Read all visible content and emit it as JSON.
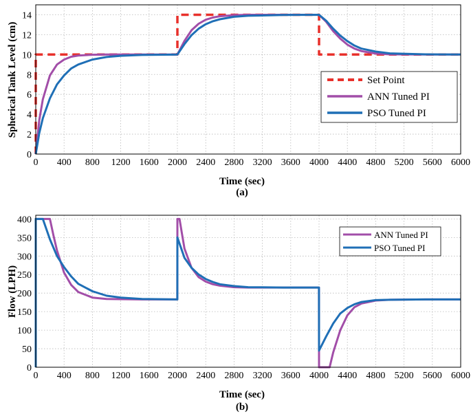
{
  "chart_data": [
    {
      "type": "line",
      "xlabel": "Time (sec)",
      "ylabel": "Spherical Tank Level (cm)",
      "caption": "(a)",
      "xlim": [
        0,
        6000
      ],
      "ylim": [
        0,
        15
      ],
      "xticks": [
        0,
        400,
        800,
        1200,
        1600,
        2000,
        2400,
        2800,
        3200,
        3600,
        4000,
        4400,
        4800,
        5200,
        5600,
        6000
      ],
      "yticks": [
        0,
        2,
        4,
        6,
        8,
        10,
        12,
        14
      ],
      "grid": true,
      "legend_position": "right",
      "series": [
        {
          "name": "Set Point",
          "color": "#e8302b",
          "style": "dashed",
          "x": [
            0,
            0,
            2000,
            2000,
            4000,
            4000,
            6000
          ],
          "y": [
            0,
            10,
            10,
            14,
            14,
            10,
            10
          ]
        },
        {
          "name": "ANN Tuned PI",
          "color": "#a24ea8",
          "style": "solid",
          "x": [
            0,
            50,
            100,
            200,
            300,
            400,
            500,
            600,
            800,
            1000,
            1500,
            2000,
            2100,
            2200,
            2300,
            2400,
            2500,
            2600,
            2800,
            3000,
            3500,
            4000,
            4100,
            4200,
            4300,
            4400,
            4500,
            4600,
            4800,
            5000,
            5500,
            6000
          ],
          "y": [
            0,
            3.4,
            5.5,
            7.9,
            9.0,
            9.5,
            9.78,
            9.9,
            9.98,
            10,
            10,
            10,
            11.38,
            12.45,
            13.1,
            13.5,
            13.72,
            13.85,
            13.96,
            14,
            14,
            14,
            13.3,
            12.35,
            11.6,
            11.0,
            10.6,
            10.35,
            10.1,
            10.02,
            10,
            10
          ]
        },
        {
          "name": "PSO Tuned PI",
          "color": "#1f6fb6",
          "style": "solid",
          "x": [
            0,
            50,
            100,
            200,
            300,
            400,
            500,
            600,
            800,
            1000,
            1200,
            1500,
            2000,
            2100,
            2200,
            2300,
            2400,
            2500,
            2600,
            2800,
            3000,
            3500,
            4000,
            4100,
            4200,
            4300,
            4400,
            4500,
            4600,
            4800,
            5000,
            5500,
            6000
          ],
          "y": [
            0,
            2.1,
            3.6,
            5.6,
            7.0,
            7.9,
            8.6,
            9.0,
            9.5,
            9.75,
            9.88,
            9.96,
            10,
            11.05,
            11.95,
            12.6,
            13.05,
            13.35,
            13.55,
            13.8,
            13.9,
            13.98,
            14,
            13.4,
            12.6,
            11.9,
            11.35,
            10.9,
            10.6,
            10.3,
            10.12,
            10.02,
            10
          ]
        }
      ]
    },
    {
      "type": "line",
      "xlabel": "Time (sec)",
      "ylabel": "Flow (LPH)",
      "caption": "(b)",
      "xlim": [
        0,
        6000
      ],
      "ylim": [
        0,
        410
      ],
      "xticks": [
        0,
        400,
        800,
        1200,
        1600,
        2000,
        2400,
        2800,
        3200,
        3600,
        4000,
        4400,
        4800,
        5200,
        5600,
        6000
      ],
      "yticks": [
        0,
        50,
        100,
        150,
        200,
        250,
        300,
        350,
        400
      ],
      "grid": true,
      "legend_position": "top-right",
      "series": [
        {
          "name": "ANN Tuned PI",
          "color": "#a24ea8",
          "style": "solid",
          "x": [
            0,
            0,
            200,
            250,
            300,
            400,
            500,
            600,
            800,
            1000,
            1500,
            1999,
            2000,
            2030,
            2060,
            2100,
            2200,
            2300,
            2400,
            2500,
            2600,
            2800,
            3000,
            3500,
            3999,
            4000,
            4150,
            4200,
            4300,
            4400,
            4500,
            4600,
            4800,
            5000,
            5500,
            6000
          ],
          "y": [
            0,
            400,
            400,
            355,
            315,
            255,
            222,
            203,
            188,
            184,
            183,
            183,
            400,
            400,
            365,
            320,
            268,
            243,
            231,
            224,
            220,
            216,
            215,
            215,
            215,
            0,
            0,
            40,
            100,
            140,
            162,
            172,
            180,
            182,
            183,
            183
          ]
        },
        {
          "name": "PSO Tuned PI",
          "color": "#1f6fb6",
          "style": "solid",
          "x": [
            0,
            0,
            100,
            200,
            300,
            400,
            500,
            600,
            800,
            1000,
            1200,
            1500,
            1999,
            2000,
            2100,
            2200,
            2300,
            2400,
            2500,
            2600,
            2800,
            3000,
            3500,
            3999,
            4000,
            4100,
            4200,
            4300,
            4400,
            4500,
            4600,
            4800,
            5000,
            5500,
            6000
          ],
          "y": [
            0,
            400,
            400,
            345,
            300,
            270,
            245,
            225,
            205,
            193,
            188,
            184,
            183,
            350,
            295,
            268,
            250,
            238,
            230,
            224,
            219,
            216,
            215,
            215,
            45,
            83,
            118,
            145,
            160,
            170,
            176,
            181,
            182,
            183,
            183
          ]
        }
      ]
    }
  ]
}
